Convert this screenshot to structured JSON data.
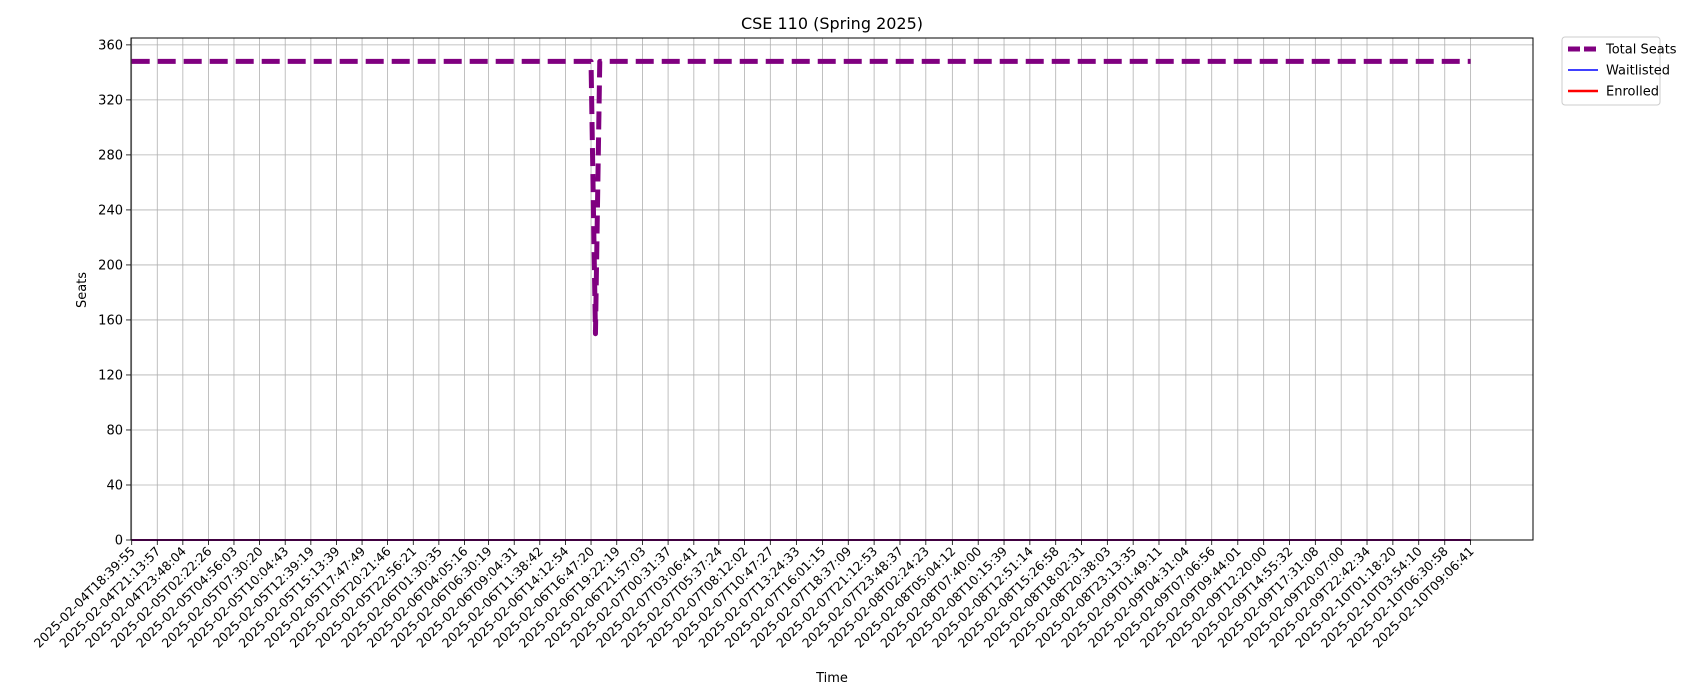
{
  "chart_data": {
    "type": "line",
    "title": "CSE 110 (Spring 2025)",
    "xlabel": "Time",
    "ylabel": "Seats",
    "ylim": [
      0,
      365
    ],
    "yticks": [
      0,
      40,
      80,
      120,
      160,
      200,
      240,
      280,
      320,
      360
    ],
    "grid": true,
    "legend_placement": "outside-top-right",
    "x": [
      "2025-02-04T18:39:55",
      "2025-02-04T21:13:57",
      "2025-02-04T23:48:04",
      "2025-02-05T02:22:26",
      "2025-02-05T04:56:03",
      "2025-02-05T07:30:20",
      "2025-02-05T10:04:43",
      "2025-02-05T12:39:19",
      "2025-02-05T15:13:39",
      "2025-02-05T17:47:49",
      "2025-02-05T20:21:46",
      "2025-02-05T22:56:21",
      "2025-02-06T01:30:35",
      "2025-02-06T04:05:16",
      "2025-02-06T06:30:19",
      "2025-02-06T09:04:31",
      "2025-02-06T11:38:42",
      "2025-02-06T14:12:54",
      "2025-02-06T16:47:20",
      "2025-02-06T19:22:19",
      "2025-02-06T21:57:03",
      "2025-02-07T00:31:37",
      "2025-02-07T03:06:41",
      "2025-02-07T05:37:24",
      "2025-02-07T08:12:02",
      "2025-02-07T10:47:27",
      "2025-02-07T13:24:33",
      "2025-02-07T16:01:15",
      "2025-02-07T18:37:09",
      "2025-02-07T21:12:53",
      "2025-02-07T23:48:37",
      "2025-02-08T02:24:23",
      "2025-02-08T05:04:12",
      "2025-02-08T07:40:00",
      "2025-02-08T10:15:39",
      "2025-02-08T12:51:14",
      "2025-02-08T15:26:58",
      "2025-02-08T18:02:31",
      "2025-02-08T20:38:03",
      "2025-02-08T23:13:35",
      "2025-02-09T01:49:11",
      "2025-02-09T04:31:04",
      "2025-02-09T07:06:56",
      "2025-02-09T09:44:01",
      "2025-02-09T12:20:00",
      "2025-02-09T14:55:32",
      "2025-02-09T17:31:08",
      "2025-02-09T20:07:00",
      "2025-02-09T22:42:34",
      "2025-02-10T01:18:20",
      "2025-02-10T03:54:10",
      "2025-02-10T06:30:58",
      "2025-02-10T09:06:41"
    ],
    "series": [
      {
        "name": "Total Seats",
        "color": "#800080",
        "style": "dashed",
        "points": [
          {
            "x": "2025-02-04T18:39:55",
            "y": 348
          },
          {
            "x": "2025-02-06T16:47:20",
            "y": 348
          },
          {
            "x": "2025-02-06T17:14:00",
            "y": 150
          },
          {
            "x": "2025-02-06T17:40:00",
            "y": 348
          },
          {
            "x": "2025-02-10T09:06:41",
            "y": 348
          }
        ]
      },
      {
        "name": "Waitlisted",
        "color": "#0000ff",
        "style": "solid",
        "points": [
          {
            "x": "2025-02-04T18:39:55",
            "y": 0
          },
          {
            "x": "2025-02-10T09:06:41",
            "y": 0
          }
        ]
      },
      {
        "name": "Enrolled",
        "color": "#ff0000",
        "style": "solid",
        "points": [
          {
            "x": "2025-02-04T18:39:55",
            "y": 0
          },
          {
            "x": "2025-02-10T09:06:41",
            "y": 0
          }
        ]
      }
    ]
  }
}
